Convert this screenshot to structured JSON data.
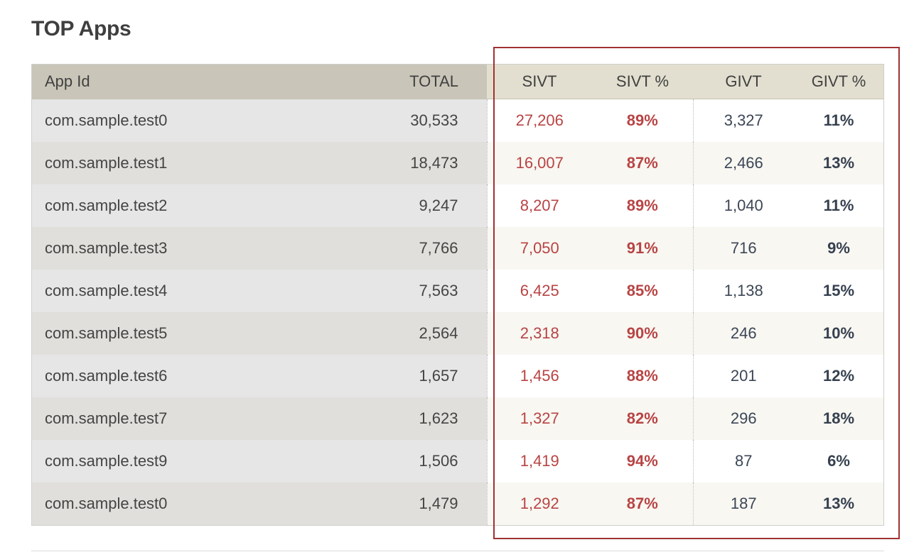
{
  "page": {
    "title": "TOP Apps"
  },
  "table": {
    "columns": [
      {
        "key": "app_id",
        "label": "App Id"
      },
      {
        "key": "total",
        "label": "TOTAL"
      },
      {
        "key": "sivt",
        "label": "SIVT"
      },
      {
        "key": "sivt_pct",
        "label": "SIVT %"
      },
      {
        "key": "givt",
        "label": "GIVT"
      },
      {
        "key": "givt_pct",
        "label": "GIVT %"
      }
    ],
    "rows": [
      {
        "app_id": "com.sample.test0",
        "total": "30,533",
        "sivt": "27,206",
        "sivt_pct": "89%",
        "givt": "3,327",
        "givt_pct": "11%"
      },
      {
        "app_id": "com.sample.test1",
        "total": "18,473",
        "sivt": "16,007",
        "sivt_pct": "87%",
        "givt": "2,466",
        "givt_pct": "13%"
      },
      {
        "app_id": "com.sample.test2",
        "total": "9,247",
        "sivt": "8,207",
        "sivt_pct": "89%",
        "givt": "1,040",
        "givt_pct": "11%"
      },
      {
        "app_id": "com.sample.test3",
        "total": "7,766",
        "sivt": "7,050",
        "sivt_pct": "91%",
        "givt": "716",
        "givt_pct": "9%"
      },
      {
        "app_id": "com.sample.test4",
        "total": "7,563",
        "sivt": "6,425",
        "sivt_pct": "85%",
        "givt": "1,138",
        "givt_pct": "15%"
      },
      {
        "app_id": "com.sample.test5",
        "total": "2,564",
        "sivt": "2,318",
        "sivt_pct": "90%",
        "givt": "246",
        "givt_pct": "10%"
      },
      {
        "app_id": "com.sample.test6",
        "total": "1,657",
        "sivt": "1,456",
        "sivt_pct": "88%",
        "givt": "201",
        "givt_pct": "12%"
      },
      {
        "app_id": "com.sample.test7",
        "total": "1,623",
        "sivt": "1,327",
        "sivt_pct": "82%",
        "givt": "296",
        "givt_pct": "18%"
      },
      {
        "app_id": "com.sample.test9",
        "total": "1,506",
        "sivt": "1,419",
        "sivt_pct": "94%",
        "givt": "87",
        "givt_pct": "6%"
      },
      {
        "app_id": "com.sample.test0",
        "total": "1,479",
        "sivt": "1,292",
        "sivt_pct": "87%",
        "givt": "187",
        "givt_pct": "13%"
      }
    ]
  },
  "colors": {
    "sivt_text": "#b84444",
    "givt_text": "#3c4656",
    "highlight_border": "#a03232",
    "header_left_bg": "#c9c6b9",
    "header_right_bg": "#e2dfd0"
  }
}
